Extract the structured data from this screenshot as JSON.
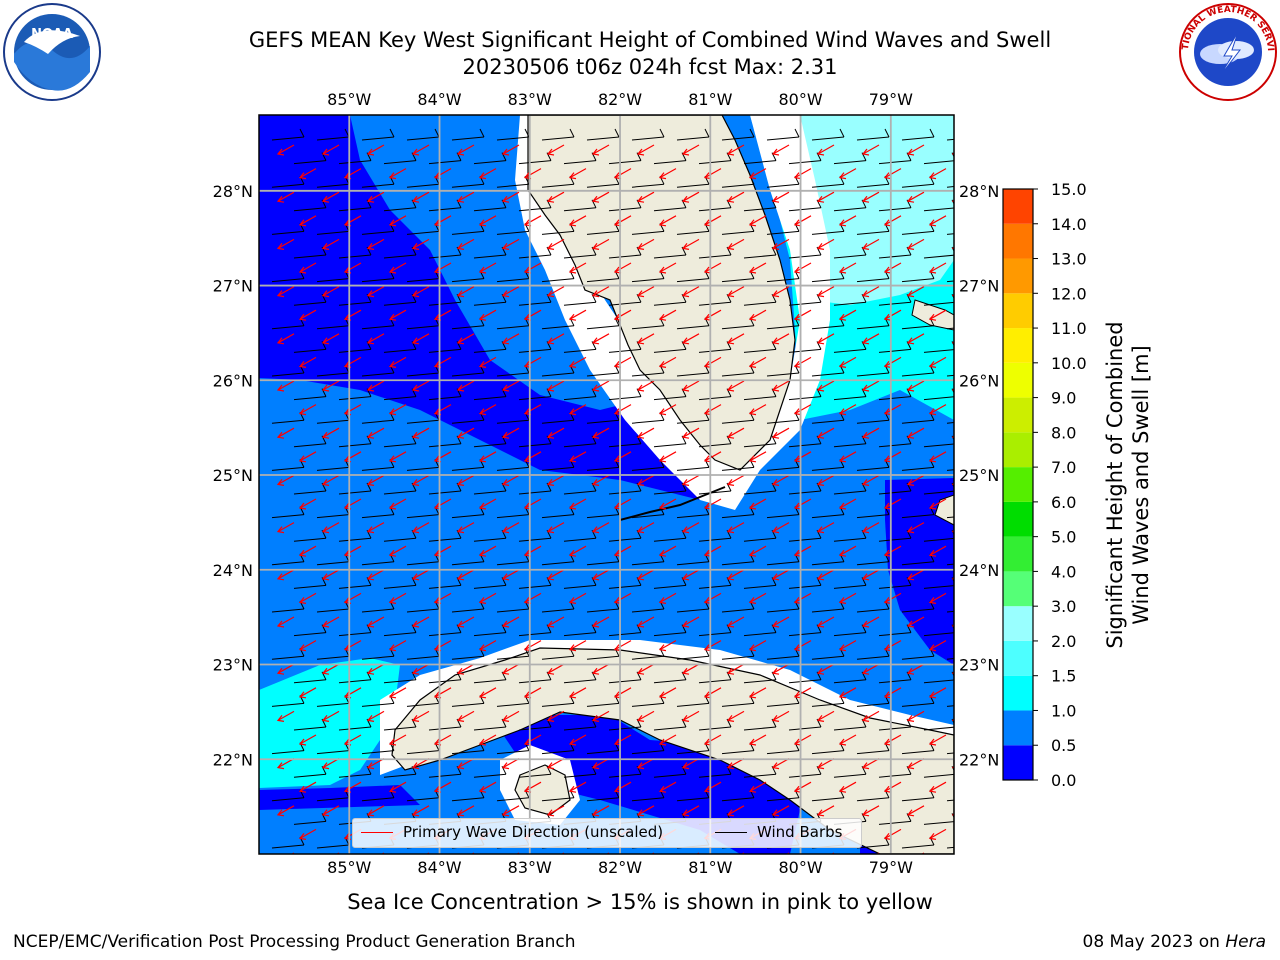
{
  "title": {
    "line1": "GEFS MEAN Key West Significant Height of Combined Wind Waves and Swell",
    "line2": "20230506 t06z 024h fcst   Max: 2.31"
  },
  "map": {
    "lon_ticks": [
      "85°W",
      "84°W",
      "83°W",
      "82°W",
      "81°W",
      "80°W",
      "79°W"
    ],
    "lat_ticks": [
      "28°N",
      "27°N",
      "26°N",
      "25°N",
      "24°N",
      "23°N",
      "22°N"
    ],
    "lon_range": [
      -86.0,
      -78.3
    ],
    "lat_range": [
      21.0,
      28.8
    ],
    "colors": {
      "land": "#eeecdc",
      "gridline": "#b0b0b0",
      "wave_arrow": "#ff0000",
      "wind_barb": "#000000"
    }
  },
  "legend": {
    "wave_label": "Primary Wave Direction (unscaled)",
    "wind_label": "Wind Barbs"
  },
  "colorbar": {
    "label": "Significant Height of Combined\nWind Waves and Swell [m]",
    "ticks": [
      "0.0",
      "0.5",
      "1.0",
      "1.5",
      "2.0",
      "3.0",
      "4.0",
      "5.0",
      "6.0",
      "7.0",
      "8.0",
      "9.0",
      "10.0",
      "11.0",
      "12.0",
      "13.0",
      "14.0",
      "15.0"
    ],
    "colors": [
      "#0000ff",
      "#007fff",
      "#00ffff",
      "#4dffff",
      "#99ffff",
      "#55ff77",
      "#33ee33",
      "#00dd00",
      "#55ee00",
      "#aaee00",
      "#ccee00",
      "#eeff00",
      "#ffee00",
      "#ffcc00",
      "#ff9900",
      "#ff7700",
      "#ff4400",
      "#ff0000"
    ]
  },
  "caption": "Sea Ice Concentration > 15% is shown in pink to yellow",
  "footer": {
    "left": "NCEP/EMC/Verification Post Processing Product Generation Branch",
    "date": "08 May 2023 on",
    "host": "Hera"
  },
  "logos": {
    "noaa_text": "NOAA",
    "nws_text": "NATIONAL WEATHER SERVICE"
  }
}
